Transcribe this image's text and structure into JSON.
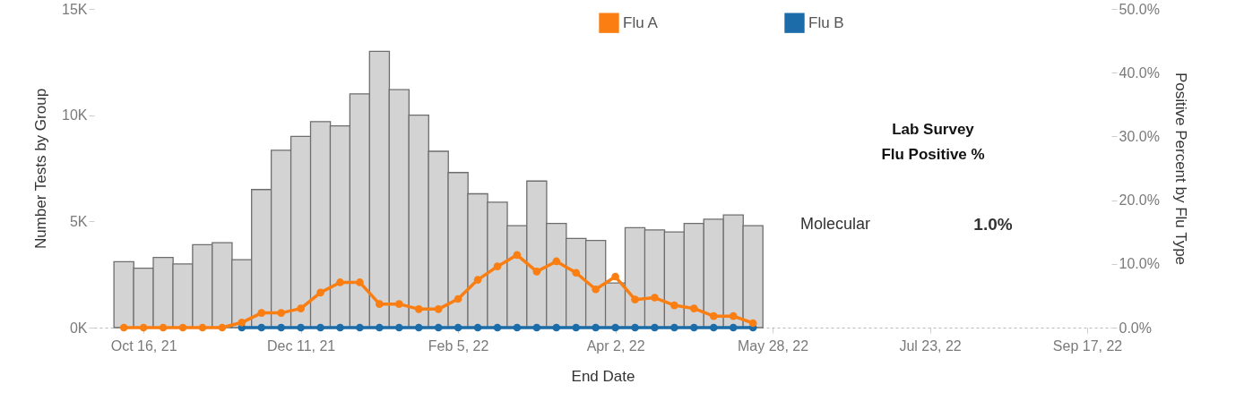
{
  "chart_data": {
    "type": "bar",
    "xlabel": "End Date",
    "ylabel": "Number Tests by Group",
    "y2label": "Positive Percent by Flu Type",
    "x": [
      "2021-10-09",
      "2021-10-16",
      "2021-10-23",
      "2021-10-30",
      "2021-11-06",
      "2021-11-13",
      "2021-11-20",
      "2021-11-27",
      "2021-12-04",
      "2021-12-11",
      "2021-12-18",
      "2021-12-25",
      "2022-01-01",
      "2022-01-08",
      "2022-01-15",
      "2022-01-22",
      "2022-01-29",
      "2022-02-05",
      "2022-02-12",
      "2022-02-19",
      "2022-02-26",
      "2022-03-05",
      "2022-03-12",
      "2022-03-19",
      "2022-03-26",
      "2022-04-02",
      "2022-04-09",
      "2022-04-16",
      "2022-04-23",
      "2022-04-30",
      "2022-05-07",
      "2022-05-14",
      "2022-05-21"
    ],
    "series": [
      {
        "color": "#d3d3d3",
        "values": [
          3100,
          2800,
          3300,
          3000,
          3900,
          4000,
          3200,
          6500,
          8350,
          9000,
          9700,
          9500,
          11000,
          13000,
          11200,
          10000,
          8300,
          7300,
          6300,
          5900,
          4800,
          6900,
          4900,
          4200,
          4100,
          2100,
          4700,
          4600,
          4500,
          4900,
          5100,
          5300,
          4800
        ]
      },
      {
        "type": "line",
        "name": "Flu A",
        "axis": "y2",
        "color": "#fa7e12",
        "values": [
          0,
          0,
          0,
          0,
          0,
          0,
          0.8,
          2.3,
          2.3,
          3.0,
          5.5,
          7.1,
          7.1,
          3.7,
          3.7,
          2.9,
          2.9,
          4.5,
          7.5,
          9.6,
          11.4,
          8.8,
          10.4,
          8.6,
          6.0,
          8.0,
          4.4,
          4.7,
          3.5,
          3.0,
          1.8,
          1.8,
          0.7
        ]
      },
      {
        "type": "line",
        "name": "Flu B",
        "axis": "y2",
        "color": "#1b6ca8",
        "values": [
          null,
          null,
          null,
          null,
          null,
          null,
          0,
          0,
          0,
          0,
          0,
          0,
          0,
          0,
          0,
          0,
          0,
          0,
          0,
          0,
          0,
          0,
          0,
          0,
          0,
          0,
          0,
          0,
          0,
          0,
          0,
          0,
          0
        ]
      }
    ],
    "xlim": [
      "2021-09-30",
      "2022-09-24"
    ],
    "xticks": [
      {
        "value": "2021-10-16",
        "label": "Oct 16, 21"
      },
      {
        "value": "2021-12-11",
        "label": "Dec 11, 21"
      },
      {
        "value": "2022-02-05",
        "label": "Feb 5, 22"
      },
      {
        "value": "2022-04-02",
        "label": "Apr 2, 22"
      },
      {
        "value": "2022-05-28",
        "label": "May 28, 22"
      },
      {
        "value": "2022-07-23",
        "label": "Jul 23, 22"
      },
      {
        "value": "2022-09-17",
        "label": "Sep 17, 22"
      }
    ],
    "ylim": [
      0,
      15000
    ],
    "yticks": [
      {
        "value": 0,
        "label": "0K"
      },
      {
        "value": 5000,
        "label": "5K"
      },
      {
        "value": 10000,
        "label": "10K"
      },
      {
        "value": 15000,
        "label": "15K"
      }
    ],
    "y2lim": [
      0,
      50
    ],
    "y2ticks": [
      {
        "value": 0,
        "label": "0.0%"
      },
      {
        "value": 10,
        "label": "10.0%"
      },
      {
        "value": 20,
        "label": "20.0%"
      },
      {
        "value": 30,
        "label": "30.0%"
      },
      {
        "value": 40,
        "label": "40.0%"
      },
      {
        "value": 50,
        "label": "50.0%"
      }
    ],
    "annotations": [
      "Lab Survey",
      "Flu Positive %",
      "Molecular",
      "1.0%"
    ],
    "legend": "top",
    "marker": "circle",
    "line_style": "solid"
  }
}
